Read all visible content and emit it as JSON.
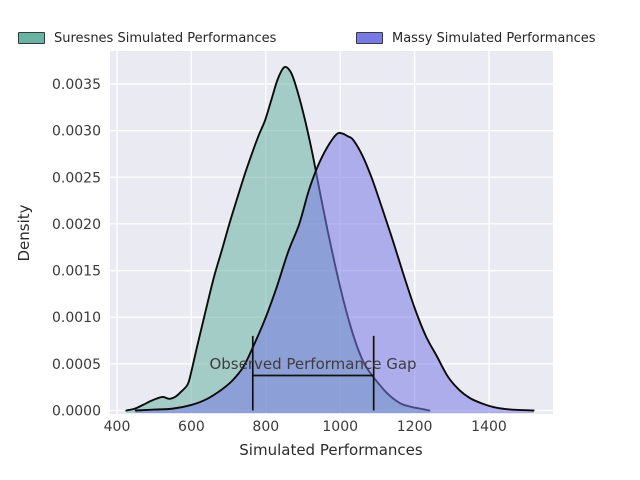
{
  "figure": {
    "background": "#ffffff"
  },
  "legend": {
    "items": [
      {
        "label": "Suresnes Simulated Performances",
        "color": "#69b3a2"
      },
      {
        "label": "Massy Simulated Performances",
        "color": "#7a7ae6"
      }
    ]
  },
  "chart_data": {
    "type": "area",
    "subtype": "kde-density",
    "title": "",
    "xlabel": "Simulated Performances",
    "ylabel": "Density",
    "xlim": [
      381,
      1572
    ],
    "ylim": [
      -5e-05,
      0.00385
    ],
    "grid": true,
    "legend_position": "top",
    "plot_background": "#eaeaf2",
    "gridline_color": "#ffffff",
    "tick_color": "#3a3a3a",
    "curve_stroke": "#0c0c0c",
    "xticks": [
      400,
      600,
      800,
      1000,
      1200,
      1400
    ],
    "xtick_labels": [
      "400",
      "600",
      "800",
      "1000",
      "1200",
      "1400"
    ],
    "yticks": [
      0.0,
      0.0005,
      0.001,
      0.0015,
      0.002,
      0.0025,
      0.003,
      0.0035
    ],
    "ytick_labels": [
      "0.0000",
      "0.0005",
      "0.0010",
      "0.0015",
      "0.0020",
      "0.0025",
      "0.0030",
      "0.0035"
    ],
    "series": [
      {
        "name": "Suresnes Simulated Performances",
        "color": "#69b3a2",
        "fill_opacity": 0.55,
        "peak": {
          "x": 850,
          "density": 0.00368
        },
        "points": [
          [
            425,
            0.0
          ],
          [
            448,
            2e-05
          ],
          [
            470,
            6e-05
          ],
          [
            490,
            0.0001
          ],
          [
            508,
            0.00013
          ],
          [
            524,
            0.000145
          ],
          [
            540,
            0.000125
          ],
          [
            556,
            0.000145
          ],
          [
            572,
            0.0002
          ],
          [
            590,
            0.00028
          ],
          [
            600,
            0.00042
          ],
          [
            615,
            0.00068
          ],
          [
            630,
            0.00093
          ],
          [
            645,
            0.00118
          ],
          [
            662,
            0.00145
          ],
          [
            682,
            0.00172
          ],
          [
            702,
            0.002
          ],
          [
            722,
            0.00226
          ],
          [
            745,
            0.00255
          ],
          [
            766,
            0.00279
          ],
          [
            782,
            0.00296
          ],
          [
            798,
            0.00311
          ],
          [
            815,
            0.00333
          ],
          [
            832,
            0.00355
          ],
          [
            850,
            0.00368
          ],
          [
            868,
            0.00362
          ],
          [
            886,
            0.00341
          ],
          [
            905,
            0.00312
          ],
          [
            925,
            0.00276
          ],
          [
            945,
            0.00235
          ],
          [
            965,
            0.00195
          ],
          [
            985,
            0.00158
          ],
          [
            1005,
            0.00124
          ],
          [
            1025,
            0.00094
          ],
          [
            1045,
            0.00069
          ],
          [
            1065,
            0.0005
          ],
          [
            1085,
            0.00038
          ],
          [
            1105,
            0.00028
          ],
          [
            1125,
            0.00019
          ],
          [
            1145,
            0.00012
          ],
          [
            1165,
            7e-05
          ],
          [
            1190,
            4e-05
          ],
          [
            1215,
            2e-05
          ],
          [
            1240,
            0.0
          ]
        ]
      },
      {
        "name": "Massy Simulated Performances",
        "color": "#7a7ae6",
        "fill_opacity": 0.55,
        "peak": {
          "x": 1000,
          "density": 0.00297
        },
        "points": [
          [
            450,
            0.0
          ],
          [
            500,
            1e-05
          ],
          [
            550,
            2e-05
          ],
          [
            600,
            6e-05
          ],
          [
            640,
            0.00012
          ],
          [
            680,
            0.00022
          ],
          [
            710,
            0.00032
          ],
          [
            740,
            0.00047
          ],
          [
            770,
            0.00072
          ],
          [
            800,
            0.001
          ],
          [
            830,
            0.00133
          ],
          [
            860,
            0.0017
          ],
          [
            890,
            0.002
          ],
          [
            915,
            0.00235
          ],
          [
            940,
            0.00262
          ],
          [
            965,
            0.00282
          ],
          [
            990,
            0.00296
          ],
          [
            1005,
            0.00297
          ],
          [
            1020,
            0.00294
          ],
          [
            1035,
            0.0029
          ],
          [
            1060,
            0.00273
          ],
          [
            1085,
            0.00249
          ],
          [
            1110,
            0.0022
          ],
          [
            1140,
            0.00184
          ],
          [
            1170,
            0.00146
          ],
          [
            1200,
            0.0011
          ],
          [
            1230,
            0.0008
          ],
          [
            1260,
            0.00058
          ],
          [
            1290,
            0.00036
          ],
          [
            1320,
            0.00022
          ],
          [
            1350,
            0.00013
          ],
          [
            1385,
            7e-05
          ],
          [
            1420,
            3e-05
          ],
          [
            1460,
            1e-05
          ],
          [
            1520,
            0.0
          ]
        ]
      }
    ],
    "annotation": {
      "label": "Observed Performance Gap",
      "x_left": 765,
      "x_right": 1090,
      "gap": 325,
      "vline_top_density": 0.0008,
      "hline_density": 0.000375,
      "line_color": "#111111"
    }
  }
}
